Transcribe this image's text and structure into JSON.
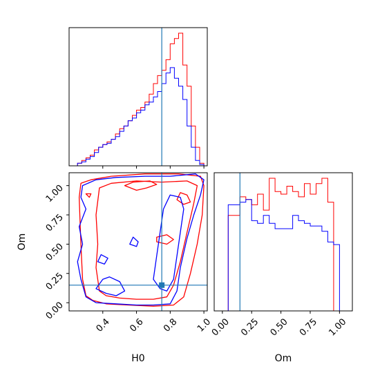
{
  "chart_data": {
    "type": "corner",
    "parameters": [
      "H0",
      "Om"
    ],
    "truth": {
      "H0": 0.75,
      "Om": 0.15
    },
    "colors": {
      "red_chain": "#ff0000",
      "blue_chain": "#0000ff",
      "truth": "#1f77b4"
    },
    "labels": {
      "x_bottom_left": "H0",
      "x_bottom_right": "Om",
      "y_left": "Om"
    },
    "h0_axis": {
      "range": [
        0.2,
        1.02
      ],
      "ticks": [
        0.4,
        0.6,
        0.8,
        1.0
      ],
      "tick_labels": [
        "0.4",
        "0.6",
        "0.8",
        "1.0"
      ]
    },
    "om_axis": {
      "range": [
        -0.07,
        1.11
      ],
      "ticks": [
        0.0,
        0.25,
        0.5,
        0.75,
        1.0
      ],
      "tick_labels": [
        "0.00",
        "0.25",
        "0.50",
        "0.75",
        "1.00"
      ]
    },
    "h0_histogram": {
      "bin_edges": [
        0.25,
        0.275,
        0.3,
        0.325,
        0.35,
        0.375,
        0.4,
        0.425,
        0.45,
        0.475,
        0.5,
        0.525,
        0.55,
        0.575,
        0.6,
        0.625,
        0.65,
        0.675,
        0.7,
        0.725,
        0.75,
        0.775,
        0.8,
        0.825,
        0.85,
        0.875,
        0.9,
        0.925,
        0.95,
        0.975,
        1.0
      ],
      "ylim": [
        0,
        1.0
      ],
      "red": [
        0.02,
        0.04,
        0.06,
        0.08,
        0.12,
        0.14,
        0.16,
        0.18,
        0.2,
        0.24,
        0.28,
        0.3,
        0.34,
        0.38,
        0.42,
        0.44,
        0.48,
        0.54,
        0.62,
        0.68,
        0.72,
        0.8,
        0.92,
        0.96,
        1.0,
        0.76,
        0.6,
        0.3,
        0.14,
        0.02
      ],
      "blue": [
        0.02,
        0.03,
        0.05,
        0.07,
        0.1,
        0.14,
        0.16,
        0.17,
        0.2,
        0.22,
        0.26,
        0.3,
        0.34,
        0.36,
        0.4,
        0.42,
        0.46,
        0.48,
        0.52,
        0.56,
        0.62,
        0.7,
        0.74,
        0.66,
        0.6,
        0.5,
        0.3,
        0.14,
        0.04,
        0.01
      ]
    },
    "om_histogram": {
      "bin_edges": [
        0.0,
        0.05,
        0.1,
        0.15,
        0.2,
        0.25,
        0.3,
        0.35,
        0.4,
        0.45,
        0.5,
        0.55,
        0.6,
        0.65,
        0.7,
        0.75,
        0.8,
        0.85,
        0.9,
        0.95,
        1.0
      ],
      "ylim": [
        0,
        1.0
      ],
      "red": [
        0.0,
        0.72,
        0.72,
        0.86,
        0.84,
        0.8,
        0.88,
        0.76,
        1.0,
        0.9,
        0.88,
        0.94,
        0.9,
        0.86,
        0.96,
        0.88,
        0.96,
        1.0,
        0.82,
        0.0
      ],
      "blue": [
        0.0,
        0.8,
        0.8,
        0.82,
        0.84,
        0.68,
        0.66,
        0.72,
        0.66,
        0.62,
        0.62,
        0.62,
        0.72,
        0.68,
        0.66,
        0.64,
        0.64,
        0.6,
        0.52,
        0.5
      ]
    },
    "contours_2d": {
      "red": [
        [
          [
            0.3,
            0.06
          ],
          [
            0.34,
            0.02
          ],
          [
            0.42,
            -0.01
          ],
          [
            0.55,
            -0.02
          ],
          [
            0.7,
            -0.03
          ],
          [
            0.82,
            -0.02
          ],
          [
            0.88,
            0.05
          ],
          [
            0.92,
            0.25
          ],
          [
            0.96,
            0.5
          ],
          [
            0.99,
            0.75
          ],
          [
            1.0,
            1.0
          ],
          [
            0.98,
            1.08
          ],
          [
            0.85,
            1.1
          ],
          [
            0.65,
            1.1
          ],
          [
            0.45,
            1.08
          ],
          [
            0.33,
            1.05
          ],
          [
            0.27,
            1.02
          ],
          [
            0.26,
            0.9
          ],
          [
            0.27,
            0.5
          ],
          [
            0.28,
            0.2
          ],
          [
            0.3,
            0.06
          ]
        ],
        [
          [
            0.38,
            0.1
          ],
          [
            0.42,
            0.06
          ],
          [
            0.5,
            0.04
          ],
          [
            0.6,
            0.03
          ],
          [
            0.7,
            0.03
          ],
          [
            0.78,
            0.05
          ],
          [
            0.82,
            0.15
          ],
          [
            0.86,
            0.35
          ],
          [
            0.9,
            0.6
          ],
          [
            0.94,
            0.85
          ],
          [
            0.96,
            1.0
          ],
          [
            0.9,
            1.04
          ],
          [
            0.75,
            1.03
          ],
          [
            0.6,
            1.04
          ],
          [
            0.45,
            1.02
          ],
          [
            0.38,
            0.98
          ],
          [
            0.36,
            0.75
          ],
          [
            0.37,
            0.5
          ],
          [
            0.36,
            0.3
          ],
          [
            0.38,
            0.1
          ]
        ],
        [
          [
            0.53,
            1.0
          ],
          [
            0.6,
            0.96
          ],
          [
            0.66,
            0.98
          ],
          [
            0.72,
            1.01
          ],
          [
            0.68,
            1.04
          ],
          [
            0.58,
            1.03
          ],
          [
            0.53,
            1.0
          ]
        ],
        [
          [
            0.84,
            0.88
          ],
          [
            0.88,
            0.84
          ],
          [
            0.92,
            0.86
          ],
          [
            0.9,
            0.92
          ],
          [
            0.86,
            0.94
          ],
          [
            0.84,
            0.88
          ]
        ],
        [
          [
            0.72,
            0.52
          ],
          [
            0.78,
            0.5
          ],
          [
            0.82,
            0.54
          ],
          [
            0.78,
            0.58
          ],
          [
            0.72,
            0.56
          ],
          [
            0.72,
            0.52
          ]
        ],
        [
          [
            0.3,
            0.93
          ],
          [
            0.32,
            0.9
          ],
          [
            0.33,
            0.93
          ],
          [
            0.3,
            0.93
          ]
        ]
      ],
      "blue": [
        [
          [
            0.3,
            0.05
          ],
          [
            0.36,
            0.0
          ],
          [
            0.48,
            -0.01
          ],
          [
            0.6,
            -0.02
          ],
          [
            0.7,
            -0.02
          ],
          [
            0.8,
            -0.01
          ],
          [
            0.84,
            0.1
          ],
          [
            0.86,
            0.3
          ],
          [
            0.9,
            0.55
          ],
          [
            0.94,
            0.75
          ],
          [
            0.98,
            0.92
          ],
          [
            1.0,
            1.05
          ],
          [
            0.95,
            1.1
          ],
          [
            0.8,
            1.08
          ],
          [
            0.65,
            1.08
          ],
          [
            0.48,
            1.07
          ],
          [
            0.36,
            1.05
          ],
          [
            0.28,
            1.0
          ],
          [
            0.27,
            0.9
          ],
          [
            0.3,
            0.8
          ],
          [
            0.26,
            0.65
          ],
          [
            0.28,
            0.5
          ],
          [
            0.25,
            0.35
          ],
          [
            0.27,
            0.2
          ],
          [
            0.3,
            0.05
          ]
        ],
        [
          [
            0.36,
            0.12
          ],
          [
            0.42,
            0.08
          ],
          [
            0.48,
            0.06
          ],
          [
            0.53,
            0.1
          ],
          [
            0.5,
            0.18
          ],
          [
            0.44,
            0.22
          ],
          [
            0.4,
            0.2
          ],
          [
            0.36,
            0.12
          ]
        ],
        [
          [
            0.74,
            0.12
          ],
          [
            0.78,
            0.1
          ],
          [
            0.82,
            0.2
          ],
          [
            0.84,
            0.4
          ],
          [
            0.86,
            0.6
          ],
          [
            0.88,
            0.8
          ],
          [
            0.86,
            0.9
          ],
          [
            0.8,
            0.92
          ],
          [
            0.76,
            0.8
          ],
          [
            0.74,
            0.6
          ],
          [
            0.72,
            0.4
          ],
          [
            0.7,
            0.2
          ],
          [
            0.74,
            0.12
          ]
        ],
        [
          [
            0.56,
            0.5
          ],
          [
            0.6,
            0.48
          ],
          [
            0.61,
            0.52
          ],
          [
            0.58,
            0.56
          ],
          [
            0.56,
            0.5
          ]
        ],
        [
          [
            0.37,
            0.35
          ],
          [
            0.41,
            0.33
          ],
          [
            0.43,
            0.38
          ],
          [
            0.39,
            0.41
          ],
          [
            0.37,
            0.35
          ]
        ]
      ]
    }
  }
}
